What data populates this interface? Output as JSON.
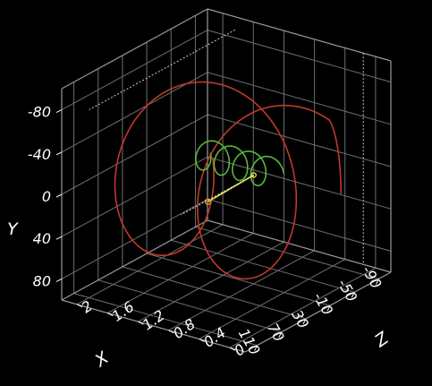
{
  "chart_data": {
    "type": "line3d",
    "title": "",
    "xlabel": "X",
    "ylabel": "Y",
    "zlabel": "Z",
    "x_ticks": [
      "110",
      "70",
      "30",
      "-10",
      "-50",
      "-90"
    ],
    "y_ticks": [
      "-80",
      "-40",
      "0",
      "40",
      "80"
    ],
    "z_ticks": [
      "0",
      "0.4",
      "0.8",
      "1.2",
      "1.6",
      "2"
    ],
    "xlim": [
      -90,
      110
    ],
    "ylim": [
      -80,
      80
    ],
    "zlim": [
      0,
      2
    ],
    "grid": true,
    "background": "#000000",
    "grid_color": "#6e6e6e",
    "series": [
      {
        "kind": "large-helix",
        "color": "#c0392b",
        "turns": 2,
        "radius": 70,
        "center_x": 10,
        "center_y": 0,
        "z_start": 0.1,
        "z_end": 1.9
      },
      {
        "kind": "small-helix",
        "color": "#59b83d",
        "turns": 4,
        "radius": 12,
        "center_x": 10,
        "center_y": -15,
        "z_start": 0.7,
        "z_end": 1.5
      },
      {
        "kind": "segment",
        "color": "#e8e84d",
        "from": [
          10,
          20,
          0.8
        ],
        "to": [
          10,
          -10,
          1.3
        ]
      }
    ]
  }
}
